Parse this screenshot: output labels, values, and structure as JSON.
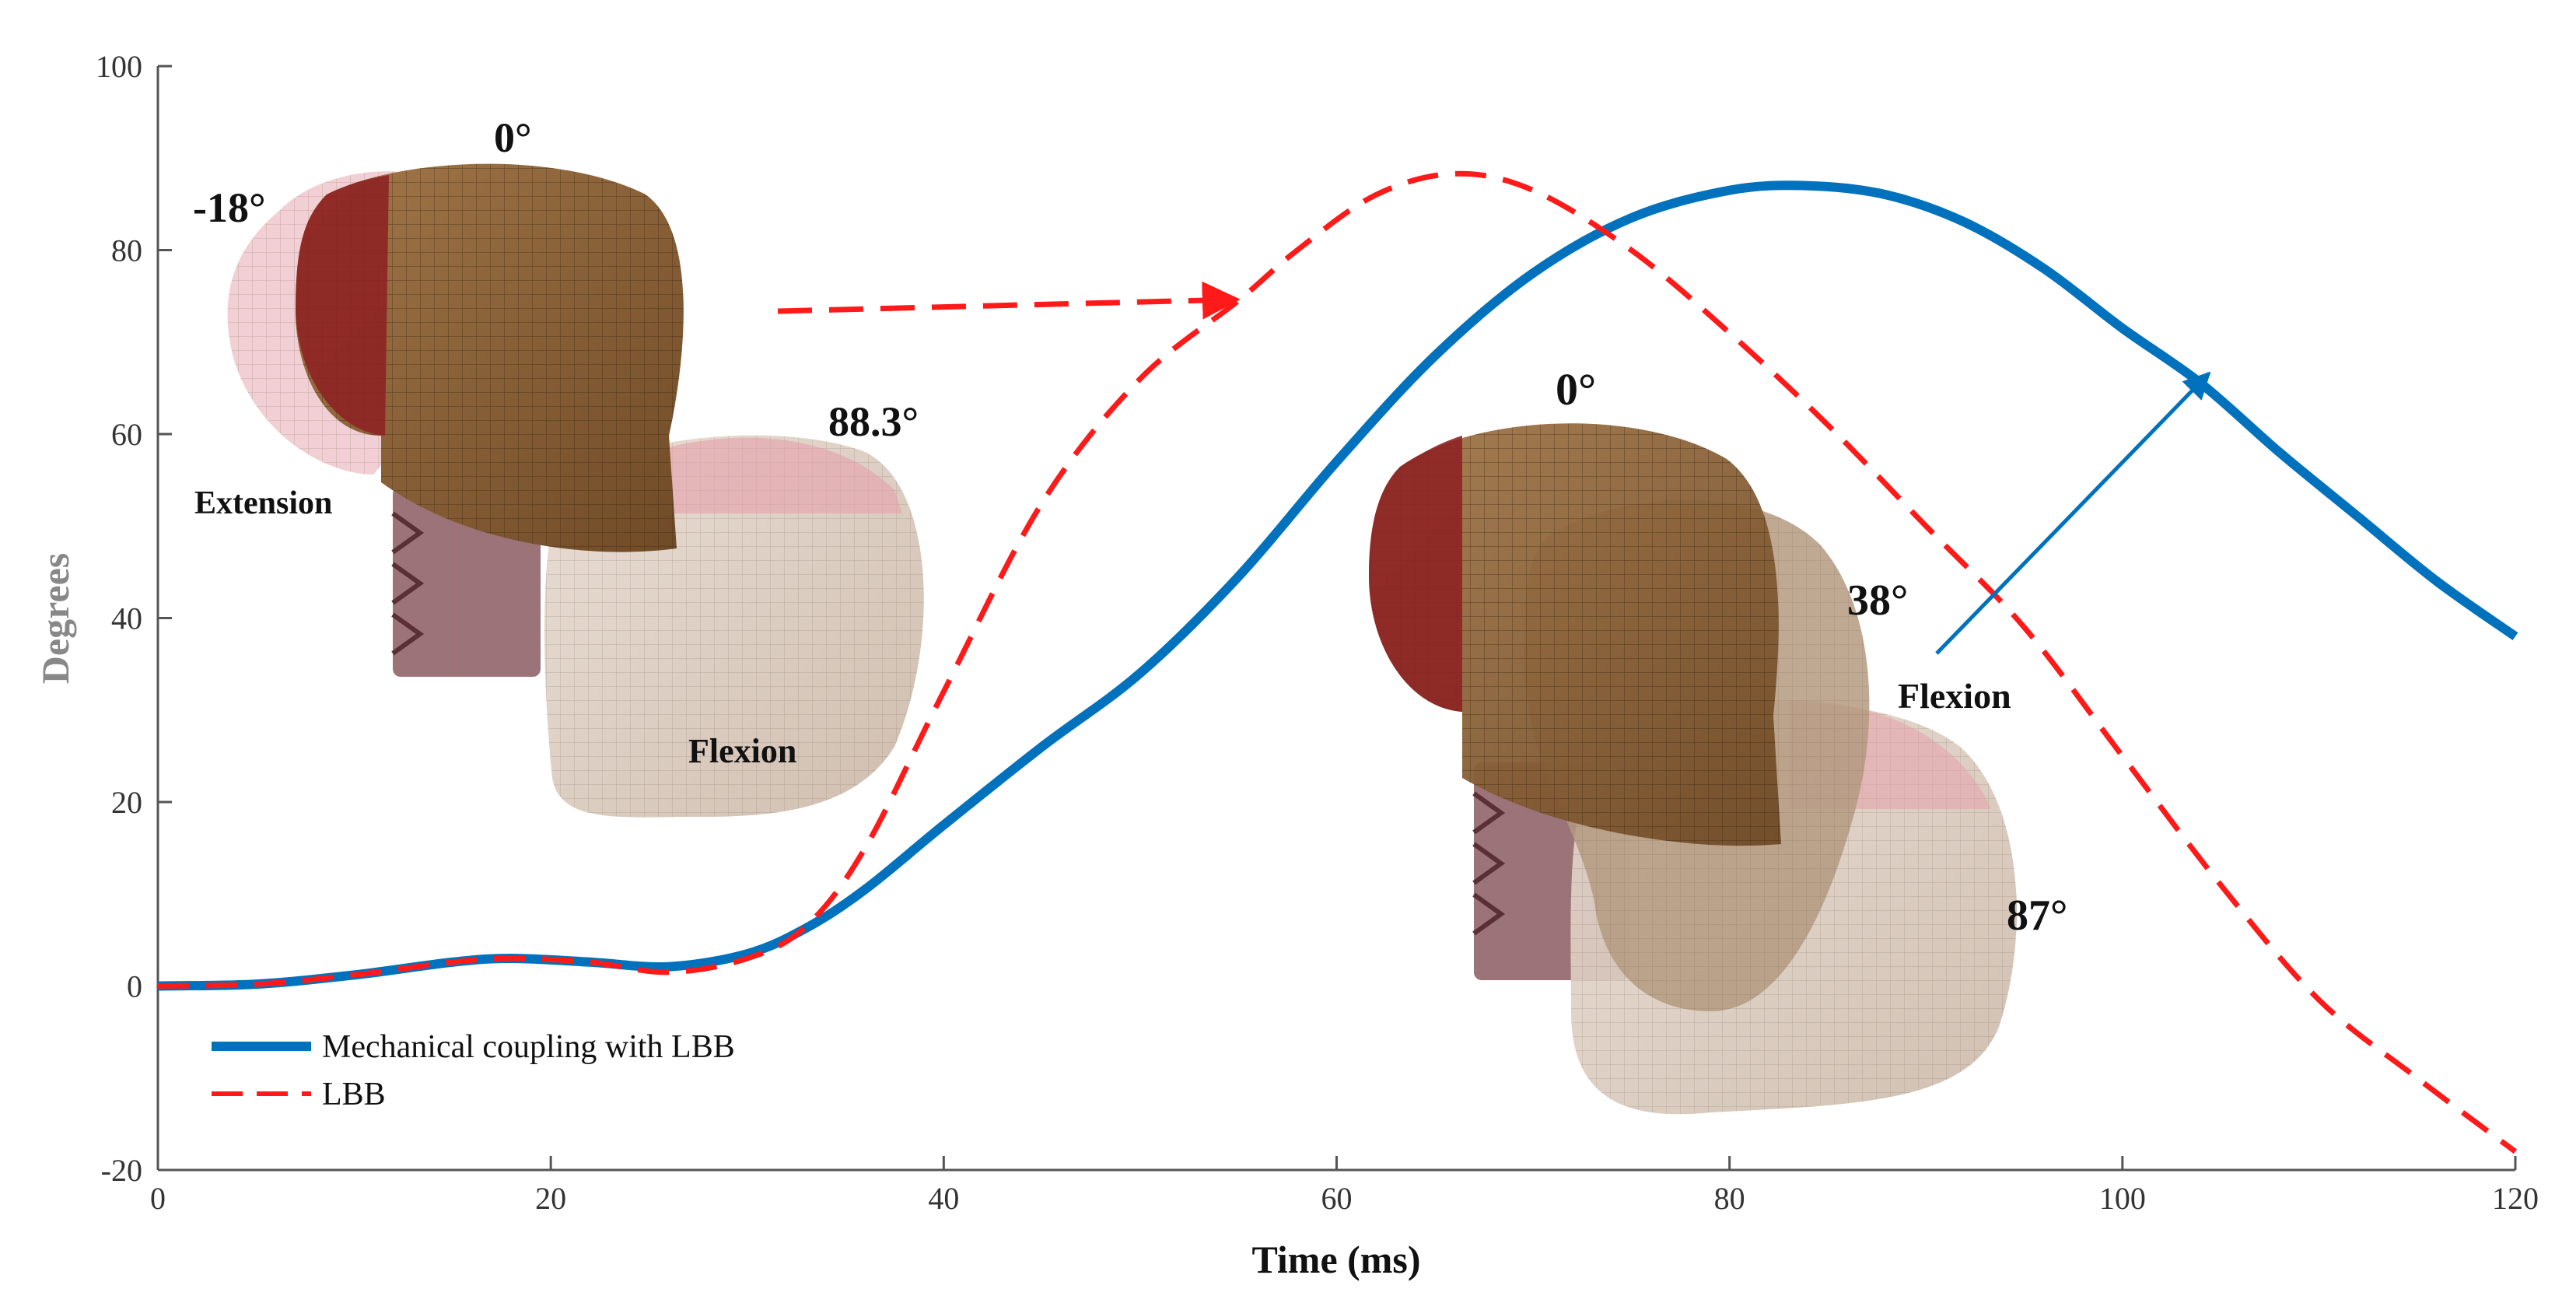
{
  "chart_data": {
    "type": "line",
    "xlabel": "Time (ms)",
    "ylabel": "Degrees",
    "xlim": [
      0,
      120
    ],
    "ylim": [
      -20,
      100
    ],
    "xticks": [
      0,
      20,
      40,
      60,
      80,
      100,
      120
    ],
    "yticks": [
      -20,
      0,
      20,
      40,
      60,
      80,
      100
    ],
    "grid": false,
    "legend_position": "bottom-left",
    "series": [
      {
        "name": "Mechanical coupling with LBB",
        "color": "#0072BD",
        "style": "solid",
        "x": [
          0,
          5,
          10,
          15,
          18,
          22,
          26,
          30,
          33,
          36,
          40,
          45,
          50,
          55,
          60,
          65,
          70,
          75,
          80,
          84,
          88,
          92,
          96,
          100,
          104,
          108,
          112,
          116,
          120
        ],
        "y": [
          0,
          0.2,
          1.2,
          2.6,
          3,
          2.6,
          2.1,
          3.5,
          6.3,
          10.5,
          17.5,
          26,
          34,
          44.5,
          57,
          68.5,
          77.5,
          83.5,
          86.5,
          87,
          86,
          83,
          78,
          71.5,
          65.5,
          58,
          51,
          44,
          38
        ]
      },
      {
        "name": "LBB",
        "color": "#FF1A1A",
        "style": "dashed",
        "x": [
          0,
          5,
          10,
          15,
          18,
          22,
          26,
          30,
          33,
          36,
          40,
          45,
          50,
          55,
          58,
          62,
          66,
          70,
          75,
          80,
          85,
          90,
          95,
          100,
          105,
          110,
          115,
          120
        ],
        "y": [
          0,
          0.2,
          1.2,
          2.6,
          3,
          2.6,
          1.5,
          3,
          6.5,
          15,
          32,
          52.5,
          66,
          74.5,
          80,
          86,
          88.3,
          86.5,
          80,
          71,
          61,
          50,
          39,
          25,
          11,
          -1.5,
          -10,
          -18
        ]
      }
    ],
    "annotations": {
      "ext_angle_neg": "-18°",
      "ext_angle_zero": "0°",
      "ext_angle_peak": "88.3°",
      "ext_label_extension": "Extension",
      "ext_label_flexion": "Flexion",
      "mc_angle_zero": "0°",
      "mc_angle_mid": "38°",
      "mc_angle_peak": "87°",
      "mc_label_flexion": "Flexion"
    }
  }
}
